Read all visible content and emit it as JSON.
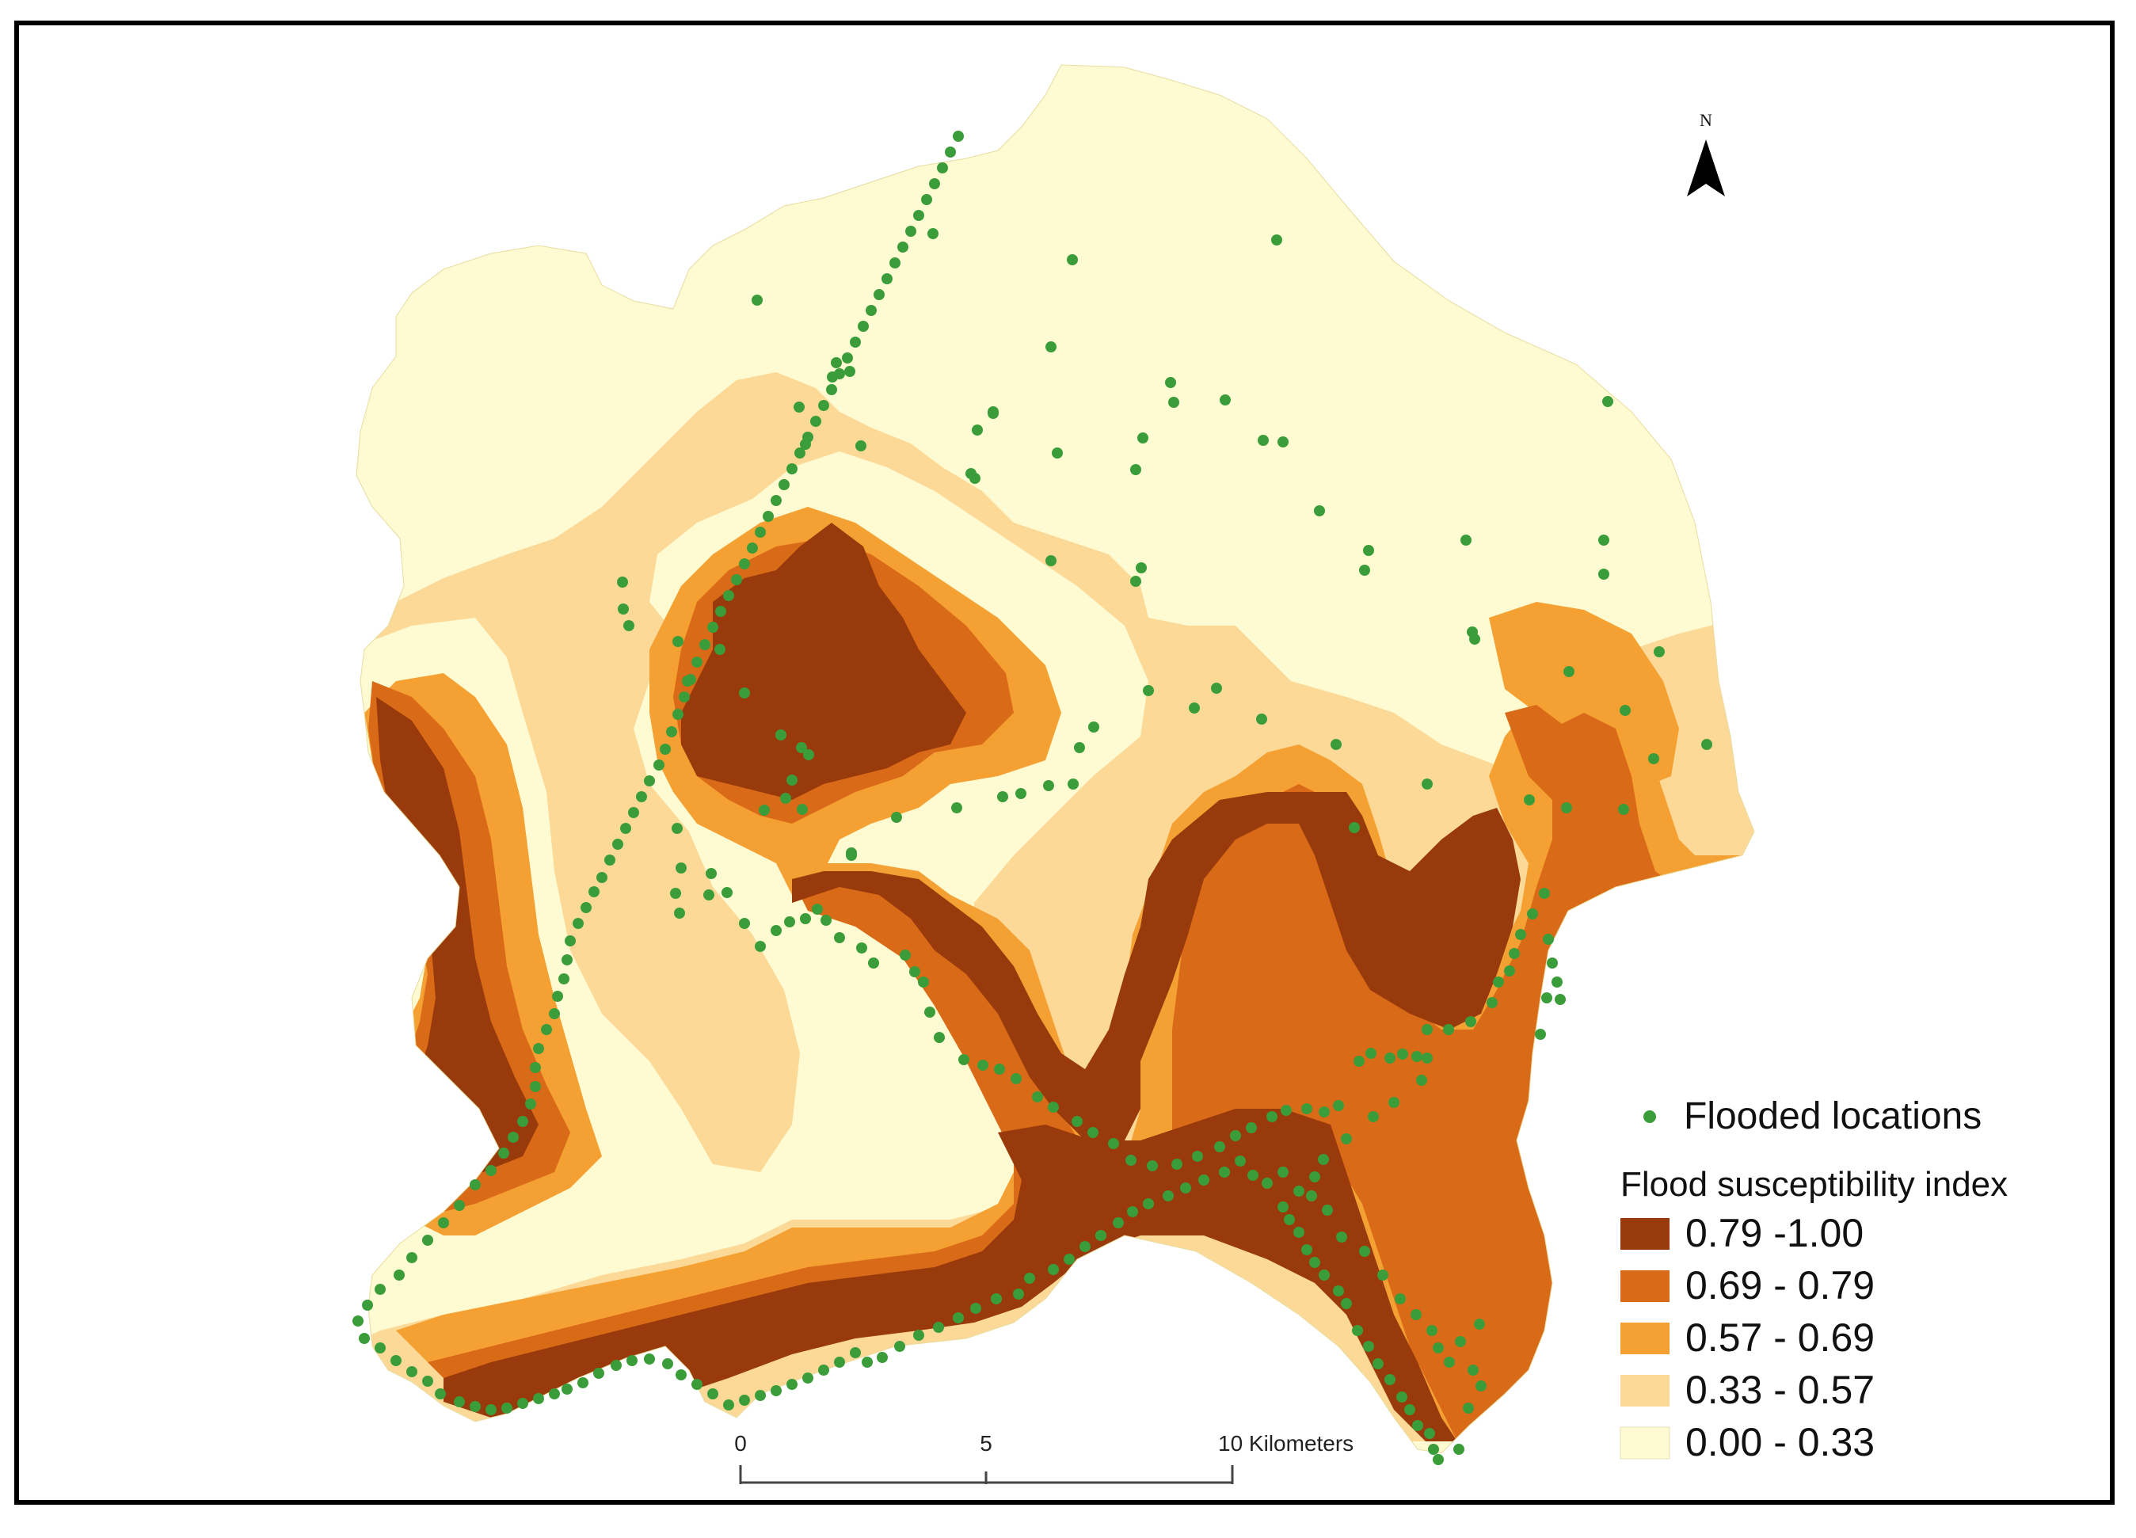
{
  "colors": {
    "class_5": "#983a0b",
    "class_4": "#d96a17",
    "class_3": "#f5a033",
    "class_2": "#fcd997",
    "class_1": "#fefbd2",
    "point": "#3a9d3a"
  },
  "north": {
    "label": "N"
  },
  "legend": {
    "points_label": "Flooded locations",
    "title": "Flood susceptibility index",
    "classes": [
      {
        "label": "0.79 -1.00",
        "color": "#983a0b"
      },
      {
        "label": "0.69 - 0.79",
        "color": "#d96a17"
      },
      {
        "label": "0.57 - 0.69",
        "color": "#f5a033"
      },
      {
        "label": "0.33 - 0.57",
        "color": "#fcd997"
      },
      {
        "label": "0.00 - 0.33",
        "color": "#fefbd2"
      }
    ]
  },
  "scale_bar": {
    "tick_0": "0",
    "tick_5": "5",
    "tick_10": "10 Kilometers"
  }
}
